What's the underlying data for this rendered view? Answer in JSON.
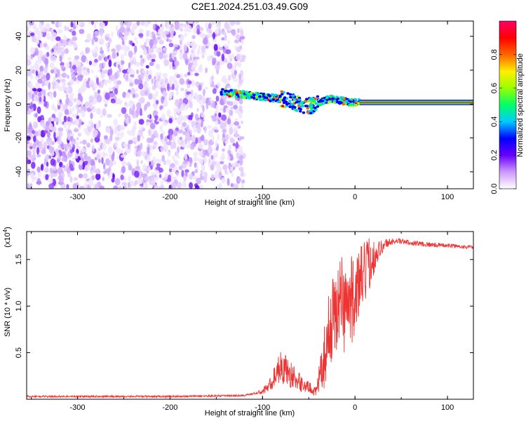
{
  "chart_data": [
    {
      "type": "heatmap",
      "title": "C2E1.2024.251.03.49.G09",
      "xlabel": "Height of straight line (km)",
      "ylabel": "Frequency (Hz)",
      "xlim": [
        -355,
        128
      ],
      "ylim": [
        -50,
        49
      ],
      "xticks": [
        -300,
        -200,
        -100,
        0,
        100
      ],
      "yticks": [
        -40,
        -20,
        0,
        20,
        40
      ],
      "xtick_labels": [
        "-300",
        "-200",
        "-100",
        "0",
        "100"
      ],
      "ytick_labels": [
        "-40",
        "-20",
        "0",
        "20",
        "40"
      ],
      "colorbar": {
        "label": "Normalized spectral amplitude",
        "range": [
          0,
          1
        ],
        "ticks": [
          0.0,
          0.2,
          0.4,
          0.6,
          0.8
        ],
        "tick_labels": [
          "0.0",
          "0.2",
          "0.4",
          "0.6",
          "0.8"
        ],
        "colors": [
          "#ffffff",
          "#cc99ff",
          "#6600ff",
          "#0000ff",
          "#00ccff",
          "#00ff66",
          "#99ff00",
          "#ffee00",
          "#ff6600",
          "#ff0000",
          "#ff0066"
        ]
      },
      "ridge": {
        "x": [
          -145,
          -125,
          -110,
          -95,
          -80,
          -65,
          -55,
          -45,
          -35,
          -25,
          -15,
          -5,
          5,
          128
        ],
        "y": [
          7,
          6,
          5,
          4,
          3,
          1,
          -1,
          -1,
          2,
          3,
          2,
          1,
          1,
          1
        ]
      },
      "noise_region": {
        "x": [
          -355,
          -120
        ],
        "y": [
          -50,
          49
        ]
      }
    },
    {
      "type": "line",
      "title": "",
      "xlabel": "Height of straight line (km)",
      "ylabel": "SNR (10 * v/v)",
      "scale_note_base": "(x10",
      "scale_note_exp": "4",
      "scale_note_close": ")",
      "xlim": [
        -355,
        128
      ],
      "ylim": [
        0,
        1.8
      ],
      "xticks": [
        -300,
        -200,
        -100,
        0,
        100
      ],
      "yticks": [
        0.5,
        1.0,
        1.5
      ],
      "xtick_labels": [
        "-300",
        "-200",
        "-100",
        "0",
        "100"
      ],
      "ytick_labels": [
        "0.5",
        "1.0",
        "1.5"
      ],
      "color": "#ee3333",
      "envelope": {
        "x": [
          -355,
          -200,
          -120,
          -100,
          -90,
          -82,
          -75,
          -65,
          -55,
          -48,
          -42,
          -35,
          -28,
          -22,
          -15,
          -8,
          0,
          8,
          15,
          25,
          35,
          45,
          60,
          80,
          100,
          128
        ],
        "y": [
          0.03,
          0.03,
          0.04,
          0.08,
          0.18,
          0.35,
          0.32,
          0.22,
          0.15,
          0.12,
          0.08,
          0.35,
          0.75,
          0.95,
          1.05,
          1.0,
          1.12,
          1.3,
          1.45,
          1.6,
          1.68,
          1.7,
          1.68,
          1.66,
          1.65,
          1.63
        ]
      },
      "noise_amplitude": {
        "x": [
          -355,
          -110,
          -100,
          -90,
          -82,
          -70,
          -60,
          -50,
          -42,
          -35,
          -25,
          -15,
          0,
          15,
          25,
          40,
          128
        ],
        "y": [
          0.01,
          0.01,
          0.03,
          0.08,
          0.18,
          0.15,
          0.1,
          0.06,
          0.05,
          0.3,
          0.45,
          0.55,
          0.45,
          0.3,
          0.1,
          0.03,
          0.02
        ]
      }
    }
  ]
}
